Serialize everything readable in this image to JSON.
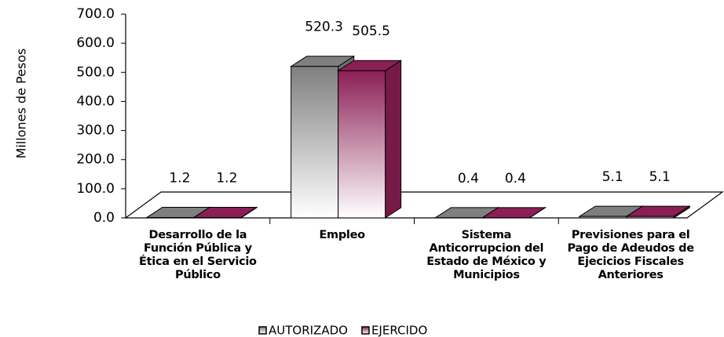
{
  "chart_data": {
    "type": "bar3d",
    "y_label": "Millones de Pesos",
    "categories": [
      "Desarrollo de la Función Pública y Ética en el Servicio Público",
      "Empleo",
      "Sistema Anticorrupcion del Estado de México y Municipios",
      "Previsiones para el Pago de Adeudos de Ejecicios Fiscales Anteriores"
    ],
    "series": [
      {
        "name": "AUTORIZADO",
        "color": "#7f7f7f",
        "values": [
          1.2,
          520.3,
          0.4,
          5.1
        ]
      },
      {
        "name": "EJERCIDO",
        "color": "#8b1f55",
        "values": [
          1.2,
          505.5,
          0.4,
          5.1
        ]
      }
    ],
    "ylim": [
      0,
      700
    ],
    "yticks": [
      {
        "value": 0,
        "label": "0.0"
      },
      {
        "value": 100,
        "label": "100.0"
      },
      {
        "value": 200,
        "label": "200.0"
      },
      {
        "value": 300,
        "label": "300.0"
      },
      {
        "value": 400,
        "label": "400.0"
      },
      {
        "value": 500,
        "label": "500.0"
      },
      {
        "value": 600,
        "label": "600.0"
      },
      {
        "value": 700,
        "label": "700.0"
      }
    ],
    "legend": "bottom"
  }
}
